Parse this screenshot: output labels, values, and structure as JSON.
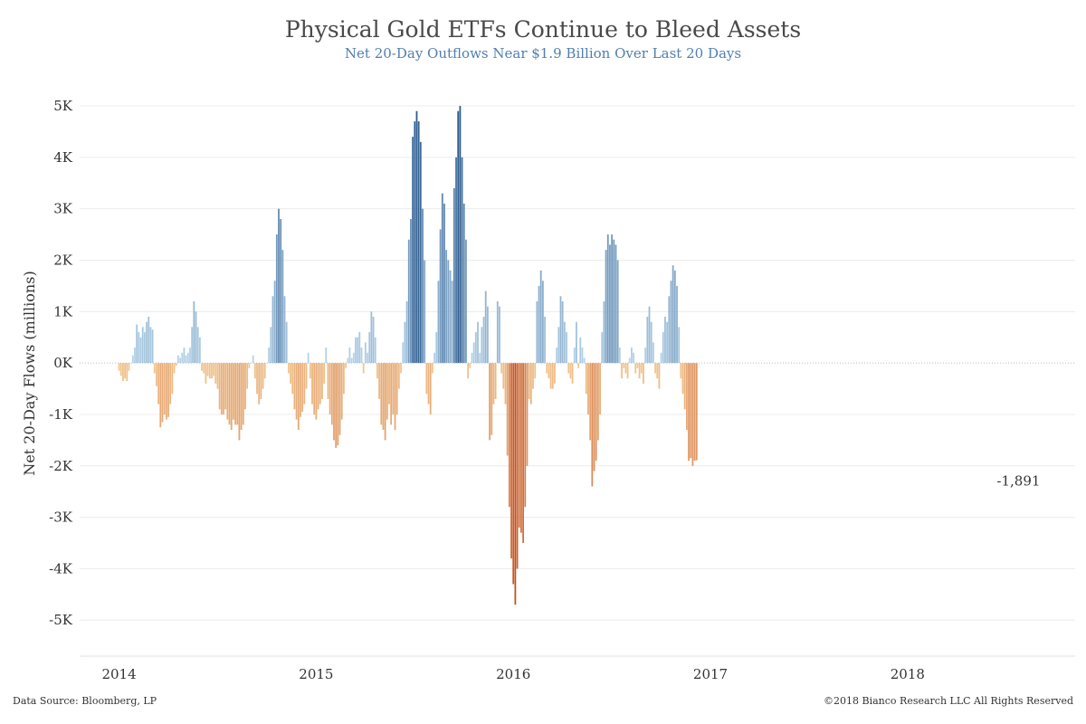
{
  "chart_data": {
    "type": "bar",
    "title": "Physical Gold ETFs Continue to Bleed Assets",
    "subtitle": "Net 20-Day Outflows Near $1.9 Billion Over Last 20 Days",
    "ylabel": "Net 20-Day Flows (millions)",
    "xlabel": "",
    "ylim": [
      -5700,
      5300
    ],
    "xlim": [
      2013.8,
      2018.85
    ],
    "y_ticks": [
      5000,
      4000,
      3000,
      2000,
      1000,
      0,
      -1000,
      -2000,
      -3000,
      -4000,
      -5000
    ],
    "y_tick_labels": [
      "5K",
      "4K",
      "3K",
      "2K",
      "1K",
      "0K",
      "-1K",
      "-2K",
      "-3K",
      "-4K",
      "-5K"
    ],
    "x_ticks": [
      2014,
      2015,
      2016,
      2017,
      2018
    ],
    "x_tick_labels": [
      "2014",
      "2015",
      "2016",
      "2017",
      "2018"
    ],
    "grid": true,
    "legend": "none",
    "color_scale": {
      "positive": "#2b5b8f",
      "negative": "#c4501f",
      "neutral_positive": "#b9d6ea",
      "neutral_negative": "#f2c993"
    },
    "annotation": {
      "text": "-1,891",
      "x": 2018.48,
      "y": -1891
    },
    "series": [
      {
        "x_start": 2014.0,
        "x_step": 0.01,
        "values": [
          -150,
          -250,
          -350,
          -300,
          -350,
          -150,
          0,
          150,
          300,
          750,
          600,
          500,
          700,
          600,
          800,
          900,
          700,
          650,
          -200,
          -450,
          -800,
          -1250,
          -1150,
          -1000,
          -1100,
          -1050,
          -800,
          -600,
          -200,
          -50,
          150,
          100,
          200,
          300,
          150,
          200,
          300,
          700,
          1200,
          1000,
          700,
          500,
          -150,
          -200,
          -400,
          -250,
          -300,
          -300,
          -250,
          -400,
          -500,
          -900,
          -1000,
          -1000,
          -900,
          -1100,
          -1200,
          -1300,
          -1100,
          -1200,
          -1200,
          -1500,
          -1300,
          -1200,
          -900,
          -500,
          -100,
          0,
          150,
          -300,
          -600,
          -800,
          -700,
          -500,
          -300,
          0,
          300,
          700,
          1300,
          1600,
          2500,
          3000,
          2800,
          2200,
          1300,
          800,
          -200,
          -400,
          -600,
          -900,
          -1100,
          -1300,
          -1050,
          -950,
          -800,
          -500,
          200,
          -300,
          -800,
          -1000,
          -1100,
          -900,
          -800,
          -700,
          -400,
          300,
          -700,
          -1000,
          -1200,
          -1500,
          -1650,
          -1600,
          -1400,
          -1100,
          -600,
          -100,
          100,
          300,
          100,
          200,
          500,
          500,
          600,
          300,
          -200,
          400,
          200,
          600,
          1000,
          900,
          500,
          -300,
          -700,
          -1200,
          -1300,
          -1500,
          -1100,
          -800,
          -1200,
          -1000,
          -1300,
          -1000,
          -500,
          -200,
          400,
          800,
          1200,
          2400,
          2800,
          4400,
          4700,
          4900,
          4700,
          4300,
          3000,
          2000,
          -600,
          -800,
          -1000,
          -200,
          200,
          600,
          1600,
          2600,
          3300,
          3100,
          2200,
          2000,
          1800,
          1600,
          3400,
          4000,
          4900,
          5000,
          4000,
          3100,
          2400,
          -300,
          -100,
          200,
          400,
          600,
          800,
          200,
          700,
          900,
          1400,
          1100,
          -1500,
          -1400,
          -800,
          -700,
          1200,
          1100,
          -200,
          -500,
          -800,
          -1800,
          -2800,
          -3800,
          -4300,
          -4700,
          -4000,
          -3200,
          -3300,
          -3500,
          -2800,
          -2000,
          -700,
          -800,
          -500,
          -300,
          1200,
          1500,
          1800,
          1600,
          900,
          -200,
          -300,
          -500,
          -500,
          -400,
          300,
          700,
          1300,
          1200,
          800,
          600,
          -200,
          -300,
          -400,
          300,
          800,
          -100,
          500,
          300,
          100,
          -600,
          -1000,
          -1500,
          -2400,
          -2100,
          -1900,
          -1500,
          -1000,
          600,
          1200,
          2200,
          2500,
          2300,
          2500,
          2400,
          2300,
          2000,
          300,
          -300,
          -100,
          -200,
          -300,
          100,
          300,
          200,
          -200,
          -100,
          -300,
          -200,
          -400,
          300,
          900,
          1100,
          800,
          400,
          -200,
          -300,
          -500,
          200,
          600,
          900,
          800,
          1300,
          1600,
          1900,
          1800,
          1500,
          700,
          -300,
          -600,
          -900,
          -1300,
          -1900,
          -1850,
          -2000,
          -1900,
          -1891
        ]
      }
    ]
  },
  "footer": {
    "source": "Data Source: Bloomberg, LP",
    "copyright": "©2018 Bianco Research LLC   All Rights Reserved"
  }
}
